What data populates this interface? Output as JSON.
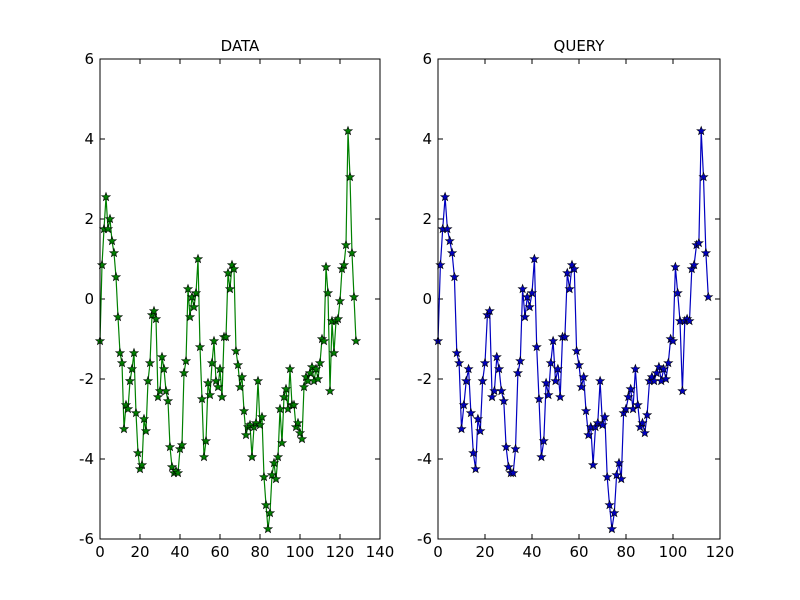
{
  "chart_data": [
    {
      "type": "line",
      "title": "DATA",
      "color": "#008000",
      "marker": "star",
      "values": [
        -1.05,
        0.85,
        1.75,
        2.55,
        1.75,
        2.0,
        1.45,
        1.15,
        0.55,
        -0.45,
        -1.35,
        -1.6,
        -3.25,
        -2.65,
        -2.75,
        -2.05,
        -1.75,
        -1.35,
        -2.85,
        -3.85,
        -4.25,
        -4.15,
        -3.0,
        -3.3,
        -2.05,
        -1.6,
        -0.4,
        -0.3,
        -0.5,
        -2.45,
        -2.3,
        -1.45,
        -1.75,
        -2.3,
        -2.55,
        -3.7,
        -4.2,
        -4.35,
        -4.3,
        -4.35,
        -3.75,
        -3.65,
        -1.85,
        -1.55,
        0.25,
        -0.45,
        0.05,
        -0.2,
        0.15,
        1.0,
        -1.2,
        -2.5,
        -3.95,
        -3.55,
        -2.1,
        -2.4,
        -1.6,
        -1.05,
        -2.05,
        -2.2,
        -1.75,
        -2.45,
        -0.95,
        -0.95,
        0.65,
        0.25,
        0.85,
        0.75,
        -1.3,
        -1.65,
        -2.2,
        -1.95,
        -2.8,
        -3.4,
        -3.2,
        -3.15,
        -3.95,
        -3.2,
        -3.1,
        -2.05,
        -3.15,
        -2.95,
        -4.45,
        -5.15,
        -5.75,
        -5.35,
        -4.4,
        -4.1,
        -4.5,
        -3.95,
        -2.75,
        -3.6,
        -2.45,
        -2.25,
        -2.75,
        -1.75,
        -2.65,
        -2.65,
        -3.2,
        -3.1,
        -3.35,
        -3.5,
        -2.2,
        -1.95,
        -2.05,
        -1.85,
        -1.7,
        -2.05,
        -1.75,
        -2.0,
        -1.6,
        -1.0,
        -1.05,
        0.8,
        0.15,
        -2.3,
        -0.55,
        -1.35,
        -0.55,
        -0.5,
        -0.05,
        0.75,
        0.85,
        1.35,
        4.2,
        3.05,
        1.15,
        0.05,
        -1.05
      ],
      "xlim": [
        0,
        140
      ],
      "xticks": [
        0,
        20,
        40,
        60,
        80,
        100,
        120,
        140
      ],
      "ylim": [
        -6,
        6
      ],
      "yticks": [
        -6,
        -4,
        -2,
        0,
        2,
        4,
        6
      ]
    },
    {
      "type": "line",
      "title": "QUERY",
      "color": "#0000c0",
      "marker": "star",
      "values": [
        -1.05,
        0.85,
        1.75,
        2.55,
        1.75,
        1.45,
        1.15,
        0.55,
        -1.35,
        -1.6,
        -3.25,
        -2.65,
        -2.05,
        -1.75,
        -2.85,
        -3.85,
        -4.25,
        -3.0,
        -3.3,
        -2.05,
        -1.6,
        -0.4,
        -0.3,
        -2.45,
        -2.3,
        -1.45,
        -1.75,
        -2.3,
        -2.55,
        -3.7,
        -4.2,
        -4.35,
        -4.35,
        -3.75,
        -1.85,
        -1.55,
        0.25,
        -0.45,
        0.05,
        -0.2,
        0.15,
        1.0,
        -1.2,
        -2.5,
        -3.95,
        -3.55,
        -2.1,
        -2.4,
        -1.6,
        -1.05,
        -2.05,
        -1.75,
        -2.45,
        -0.95,
        -0.95,
        0.65,
        0.25,
        0.85,
        0.75,
        -1.3,
        -1.65,
        -2.2,
        -1.95,
        -2.8,
        -3.4,
        -3.2,
        -4.15,
        -3.2,
        -3.1,
        -2.05,
        -3.15,
        -2.95,
        -4.45,
        -5.15,
        -5.75,
        -5.35,
        -4.4,
        -4.1,
        -4.5,
        -2.85,
        -2.75,
        -2.45,
        -2.25,
        -2.75,
        -1.75,
        -2.65,
        -3.2,
        -3.1,
        -3.35,
        -2.9,
        -2.05,
        -1.95,
        -2.05,
        -1.85,
        -1.7,
        -2.05,
        -1.75,
        -2.0,
        -1.6,
        -1.0,
        -1.05,
        0.8,
        0.15,
        -0.55,
        -2.3,
        -0.55,
        -0.5,
        -0.55,
        0.75,
        0.85,
        1.35,
        1.4,
        4.2,
        3.05,
        1.15,
        0.05
      ],
      "xlim": [
        0,
        120
      ],
      "xticks": [
        0,
        20,
        40,
        60,
        80,
        100,
        120
      ],
      "ylim": [
        -6,
        6
      ],
      "yticks": [
        -6,
        -4,
        -2,
        0,
        2,
        4,
        6
      ]
    }
  ]
}
